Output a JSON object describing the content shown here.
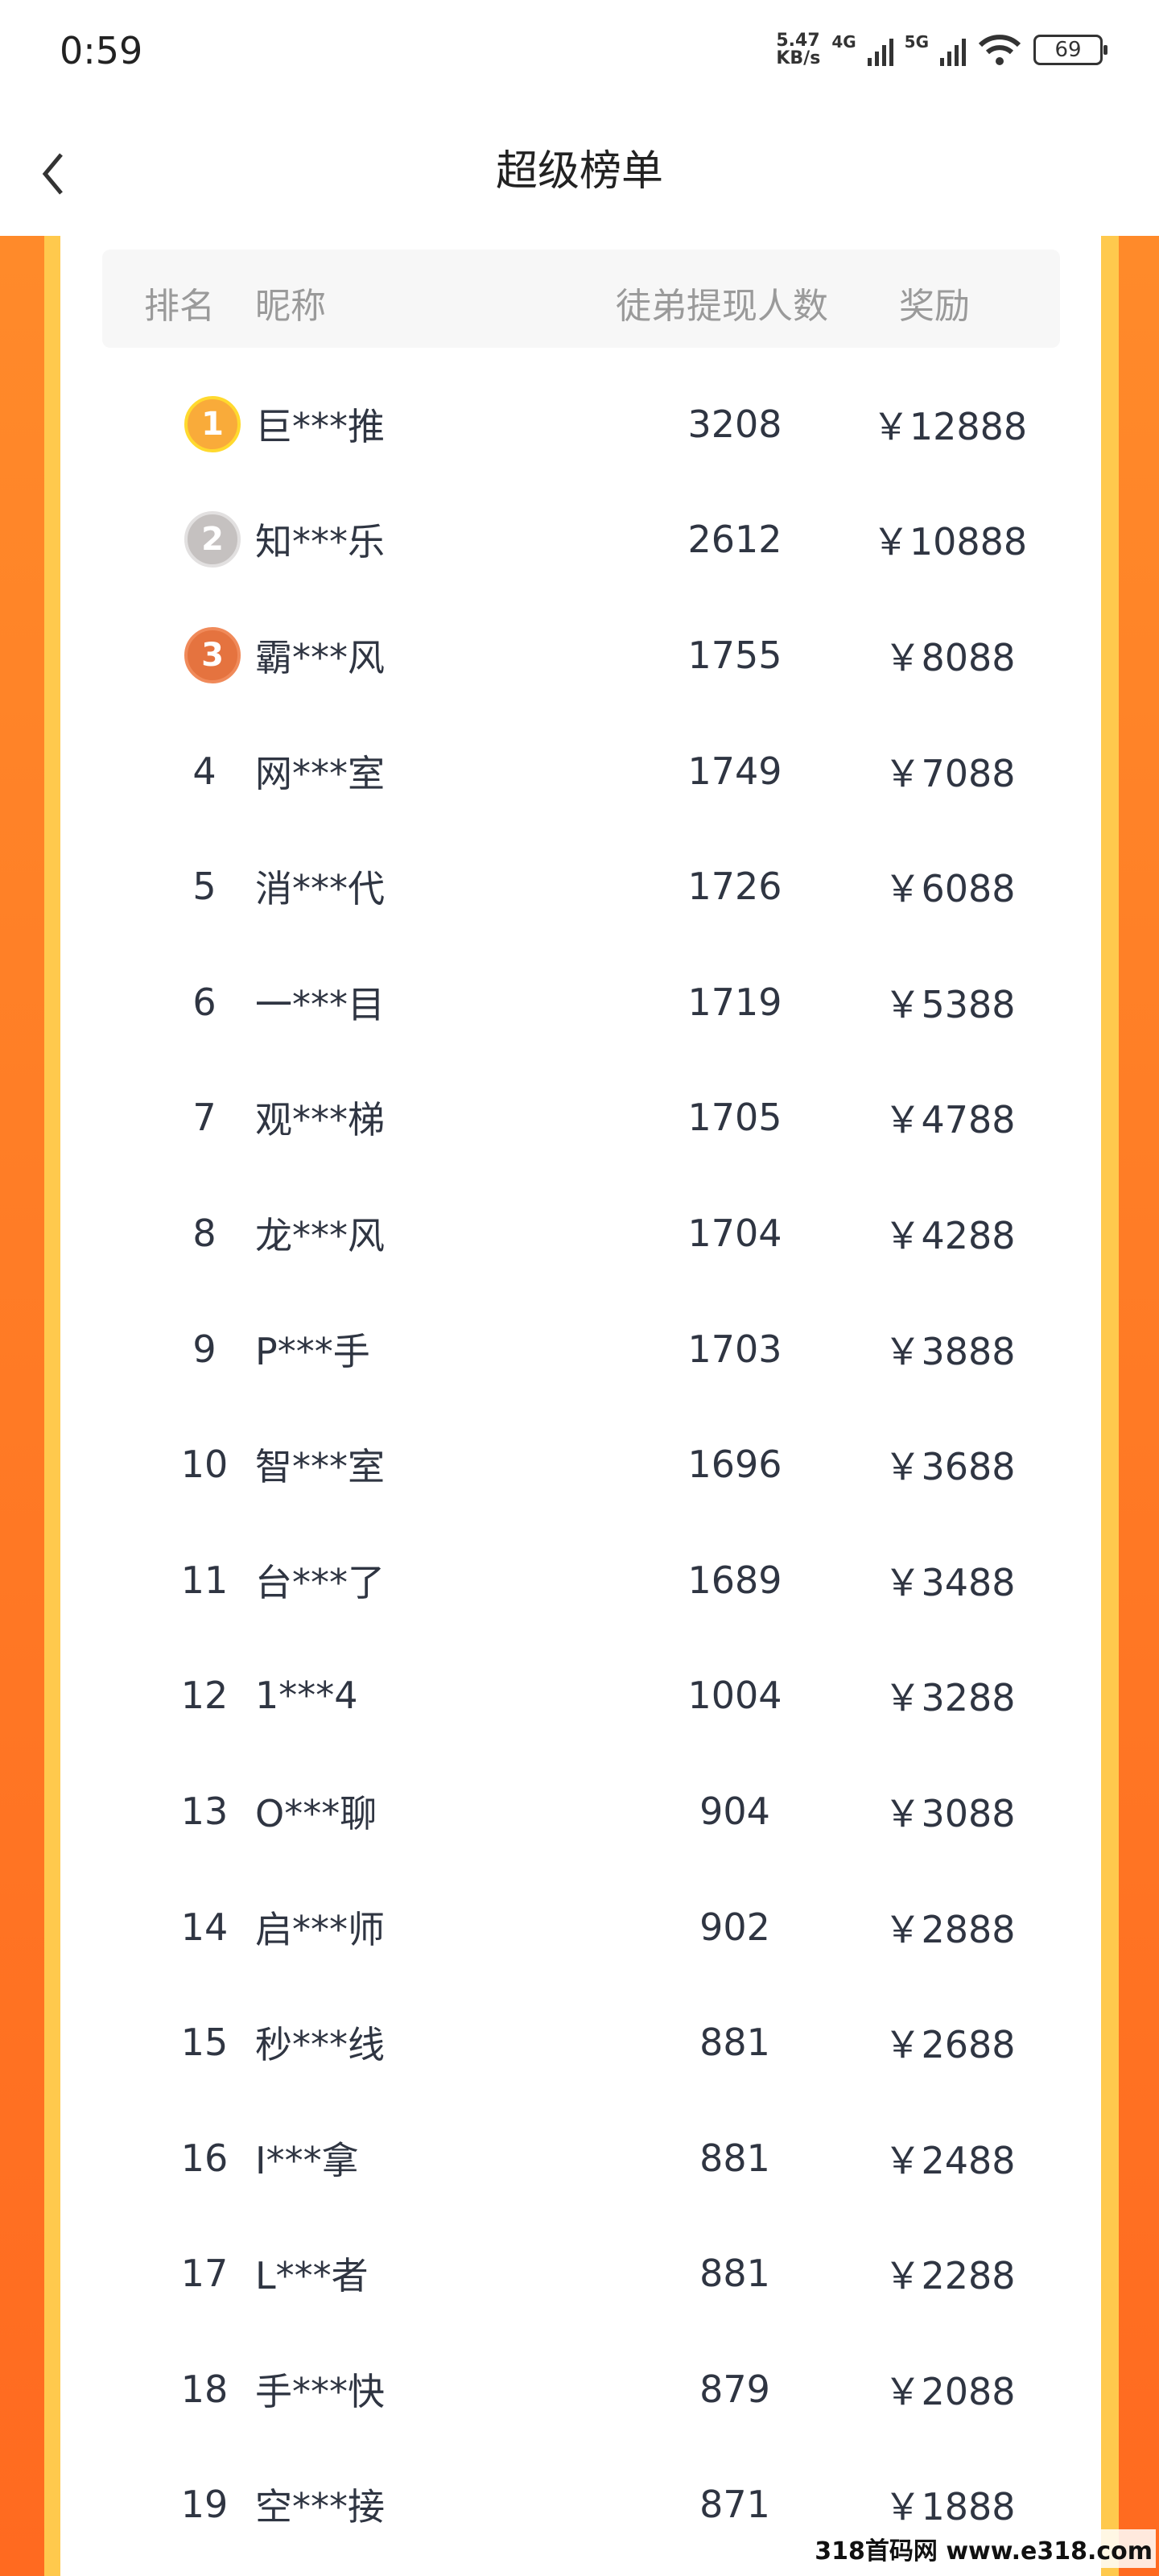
{
  "status_bar": {
    "time": "0:59",
    "speed": "5.47",
    "speed_unit": "KB/s",
    "net1": "4G",
    "net2": "5G",
    "battery": "69"
  },
  "header": {
    "title": "超级榜单"
  },
  "table": {
    "columns": [
      "排名",
      "昵称",
      "徒弟提现人数",
      "奖励"
    ],
    "medal_colors": [
      "#f9ab3a",
      "#c5c1c0",
      "#e5733f"
    ],
    "medal_rings": [
      "#ffd92e",
      "#e2e0e0",
      "#f08a5a"
    ],
    "rows": [
      {
        "rank": "1",
        "name": "巨***推",
        "count": "3208",
        "reward": "￥12888"
      },
      {
        "rank": "2",
        "name": "知***乐",
        "count": "2612",
        "reward": "￥10888"
      },
      {
        "rank": "3",
        "name": "霸***风",
        "count": "1755",
        "reward": "￥8088"
      },
      {
        "rank": "4",
        "name": "网***室",
        "count": "1749",
        "reward": "￥7088"
      },
      {
        "rank": "5",
        "name": "消***代",
        "count": "1726",
        "reward": "￥6088"
      },
      {
        "rank": "6",
        "name": "一***目",
        "count": "1719",
        "reward": "￥5388"
      },
      {
        "rank": "7",
        "name": "观***梯",
        "count": "1705",
        "reward": "￥4788"
      },
      {
        "rank": "8",
        "name": "龙***风",
        "count": "1704",
        "reward": "￥4288"
      },
      {
        "rank": "9",
        "name": "P***手",
        "count": "1703",
        "reward": "￥3888"
      },
      {
        "rank": "10",
        "name": "智***室",
        "count": "1696",
        "reward": "￥3688"
      },
      {
        "rank": "11",
        "name": "台***了",
        "count": "1689",
        "reward": "￥3488"
      },
      {
        "rank": "12",
        "name": "1***4",
        "count": "1004",
        "reward": "￥3288"
      },
      {
        "rank": "13",
        "name": "O***聊",
        "count": "904",
        "reward": "￥3088"
      },
      {
        "rank": "14",
        "name": "启***师",
        "count": "902",
        "reward": "￥2888"
      },
      {
        "rank": "15",
        "name": "秒***线",
        "count": "881",
        "reward": "￥2688"
      },
      {
        "rank": "16",
        "name": "I***拿",
        "count": "881",
        "reward": "￥2488"
      },
      {
        "rank": "17",
        "name": "L***者",
        "count": "881",
        "reward": "￥2288"
      },
      {
        "rank": "18",
        "name": "手***快",
        "count": "879",
        "reward": "￥2088"
      },
      {
        "rank": "19",
        "name": "空***接",
        "count": "871",
        "reward": "￥1888"
      }
    ]
  },
  "watermark": "318首码网 www.e318.com"
}
